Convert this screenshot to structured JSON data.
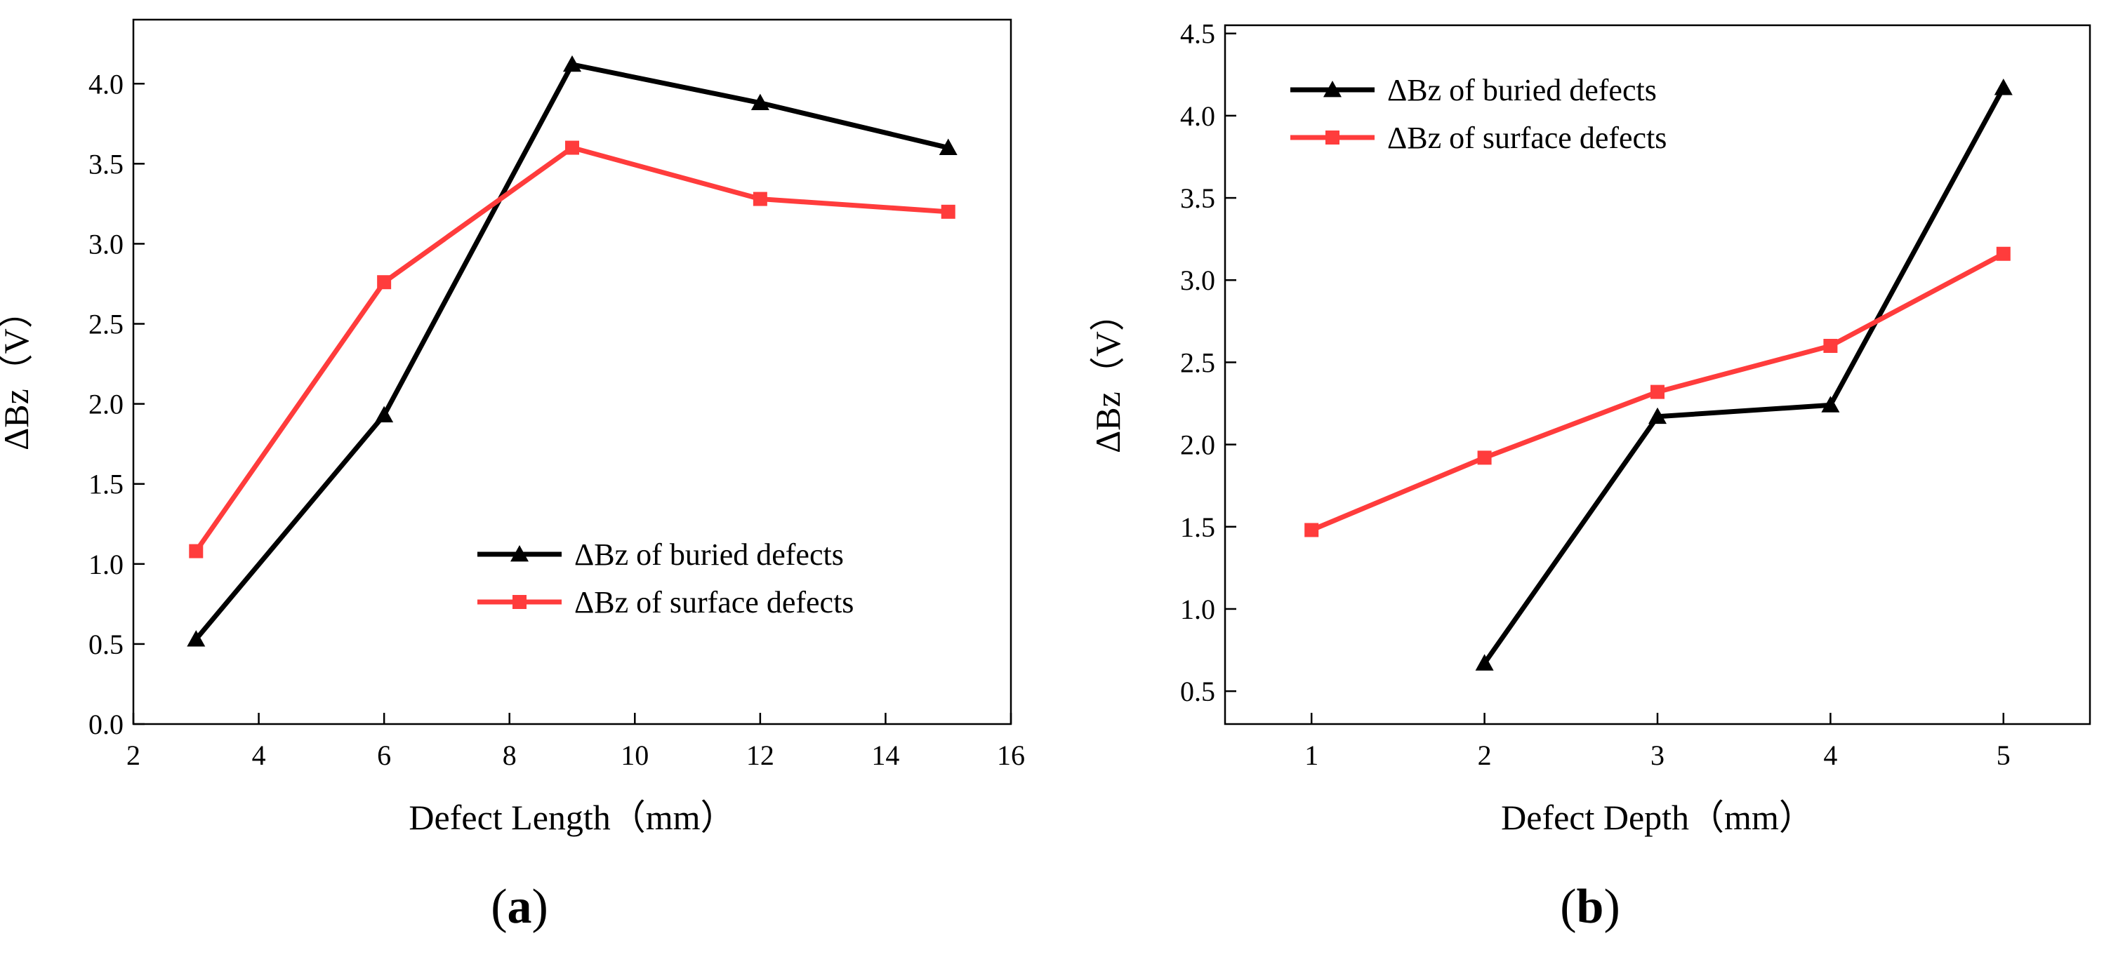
{
  "chart_data": [
    {
      "type": "line",
      "panel_label": "a",
      "title": "",
      "xlabel": "Defect Length（mm）",
      "ylabel": "ΔBz（V）",
      "xlim": [
        2,
        16
      ],
      "ylim": [
        0.0,
        4.4
      ],
      "xticks": [
        2,
        4,
        6,
        8,
        10,
        12,
        14,
        16
      ],
      "xtick_labels": [
        "2",
        "4",
        "6",
        "8",
        "10",
        "12",
        "14",
        "16"
      ],
      "yticks": [
        0.0,
        0.5,
        1.0,
        1.5,
        2.0,
        2.5,
        3.0,
        3.5,
        4.0
      ],
      "ytick_labels": [
        "0.0",
        "0.5",
        "1.0",
        "1.5",
        "2.0",
        "2.5",
        "3.0",
        "3.5",
        "4.0"
      ],
      "grid": false,
      "legend_position": "bottom-right",
      "series": [
        {
          "name": "ΔBz of buried defects",
          "color": "#000000",
          "marker": "triangle",
          "x": [
            3,
            6,
            9,
            12,
            15
          ],
          "y": [
            0.53,
            1.93,
            4.12,
            3.88,
            3.6
          ]
        },
        {
          "name": "ΔBz of surface defects",
          "color": "#ff3c3c",
          "marker": "square",
          "x": [
            3,
            6,
            9,
            12,
            15
          ],
          "y": [
            1.08,
            2.76,
            3.6,
            3.28,
            3.2
          ]
        }
      ]
    },
    {
      "type": "line",
      "panel_label": "b",
      "title": "",
      "xlabel": "Defect Depth（mm）",
      "ylabel": "ΔBz（V）",
      "xlim": [
        0.5,
        5.5
      ],
      "ylim": [
        0.3,
        4.55
      ],
      "xticks": [
        1,
        2,
        3,
        4,
        5
      ],
      "xtick_labels": [
        "1",
        "2",
        "3",
        "4",
        "5"
      ],
      "yticks": [
        0.5,
        1.0,
        1.5,
        2.0,
        2.5,
        3.0,
        3.5,
        4.0,
        4.5
      ],
      "ytick_labels": [
        "0.5",
        "1.0",
        "1.5",
        "2.0",
        "2.5",
        "3.0",
        "3.5",
        "4.0",
        "4.5"
      ],
      "grid": false,
      "legend_position": "top-left",
      "series": [
        {
          "name": "ΔBz of buried defects",
          "color": "#000000",
          "marker": "triangle",
          "x": [
            2,
            3,
            4,
            5
          ],
          "y": [
            0.67,
            2.17,
            2.24,
            4.17
          ]
        },
        {
          "name": "ΔBz of surface defects",
          "color": "#ff3c3c",
          "marker": "square",
          "x": [
            1,
            2,
            3,
            4,
            5
          ],
          "y": [
            1.48,
            1.92,
            2.32,
            2.6,
            3.16
          ]
        }
      ]
    }
  ]
}
